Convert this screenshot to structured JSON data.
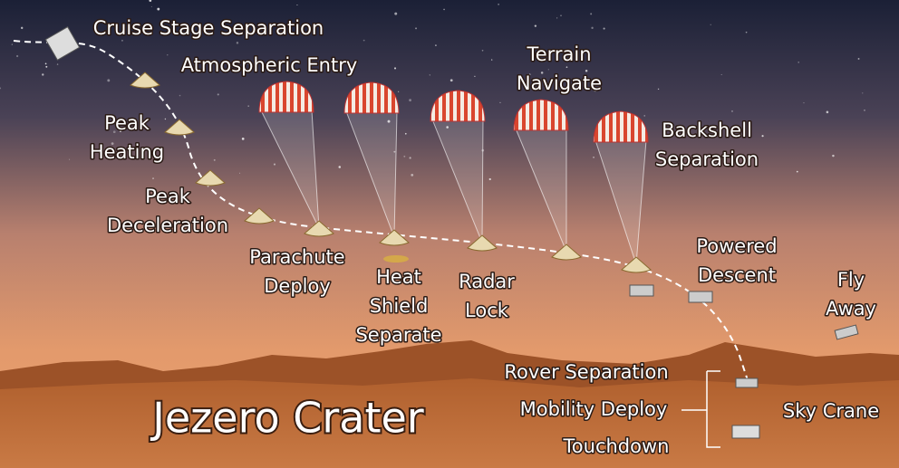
{
  "title": "Jezero Crater",
  "labels": [
    {
      "lines": [
        "Cruise Stage Separation"
      ]
    },
    {
      "lines": [
        "Atmospheric Entry"
      ]
    },
    {
      "lines": [
        "Peak",
        "Heating"
      ]
    },
    {
      "lines": [
        "Peak",
        "Deceleration"
      ]
    },
    {
      "lines": [
        "Parachute",
        "Deploy"
      ]
    },
    {
      "lines": [
        "Heat",
        "Shield",
        "Separate"
      ]
    },
    {
      "lines": [
        "Radar",
        "Lock"
      ]
    },
    {
      "lines": [
        "Terrain",
        "Navigate"
      ]
    },
    {
      "lines": [
        "Backshell",
        "Separation"
      ]
    },
    {
      "lines": [
        "Powered",
        "Descent"
      ]
    },
    {
      "lines": [
        "Fly",
        "Away"
      ]
    },
    {
      "lines": [
        "Rover Separation"
      ]
    },
    {
      "lines": [
        "Mobility Deploy"
      ]
    },
    {
      "lines": [
        "Touchdown"
      ]
    },
    {
      "lines": [
        "Sky Crane"
      ]
    }
  ]
}
